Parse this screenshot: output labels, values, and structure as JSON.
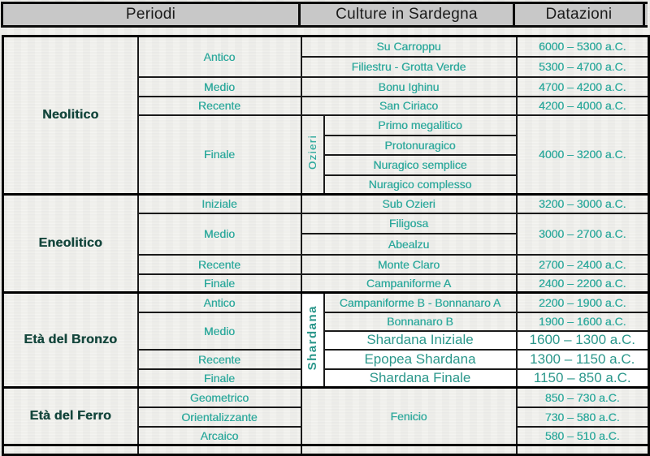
{
  "header": {
    "periodi": "Periodi",
    "culture": "Culture in Sardegna",
    "datazioni": "Datazioni"
  },
  "vertical_labels": {
    "ozieri": "Ozieri",
    "shardana": "Shardana"
  },
  "colors": {
    "header_bg": "#c8c8c8",
    "scan_teal": "#2ba89b",
    "clean_teal": "#2b978b",
    "period_dark_teal": "#14463c",
    "border_black": "#1a1a1a"
  },
  "neolitico": {
    "name": "Neolitico",
    "phases": {
      "antico": "Antico",
      "medio": "Medio",
      "recente": "Recente",
      "finale": "Finale"
    },
    "cultures": [
      "Su Carroppu",
      "Filiestru - Grotta Verde",
      "Bonu Ighinu",
      "San Ciriaco",
      "Primo megalitico",
      "Protonuragico",
      "Nuragico semplice",
      "Nuragico complesso"
    ],
    "dates": [
      "6000 – 5300 a.C.",
      "5300 – 4700 a.C.",
      "4700 – 4200 a.C.",
      "4200 – 4000 a.C.",
      "4000 – 3200 a.C."
    ]
  },
  "eneolitico": {
    "name": "Eneolitico",
    "phases": {
      "iniziale": "Iniziale",
      "medio": "Medio",
      "recente": "Recente",
      "finale": "Finale"
    },
    "cultures": [
      "Sub Ozieri",
      "Filigosa",
      "Abealzu",
      "Monte Claro",
      "Campaniforme A"
    ],
    "dates": [
      "3200 – 3000 a.C.",
      "3000 – 2700 a.C.",
      "2700 – 2400 a.C.",
      "2400 – 2200 a.C."
    ]
  },
  "bronzo": {
    "name": "Età del Bronzo",
    "phases": {
      "antico": "Antico",
      "medio": "Medio",
      "recente": "Recente",
      "finale": "Finale"
    },
    "cultures": [
      "Campaniforme B - Bonnanaro A",
      "Bonnanaro B",
      "Shardana Iniziale",
      "Epopea Shardana",
      "Shardana Finale"
    ],
    "dates": [
      "2200 – 1900 a.C.",
      "1900 – 1600 a.C.",
      "1600 – 1300 a.C.",
      "1300 – 1150 a.C.",
      "1150 – 850 a.C."
    ]
  },
  "ferro": {
    "name": "Età del Ferro",
    "phases": {
      "geometrico": "Geometrico",
      "orientalizzante": "Orientalizzante",
      "arcaico": "Arcaico"
    },
    "culture": "Fenicio",
    "dates": [
      "850 – 730 a.C.",
      "730 – 580 a.C.",
      "580 – 510 a.C."
    ]
  }
}
